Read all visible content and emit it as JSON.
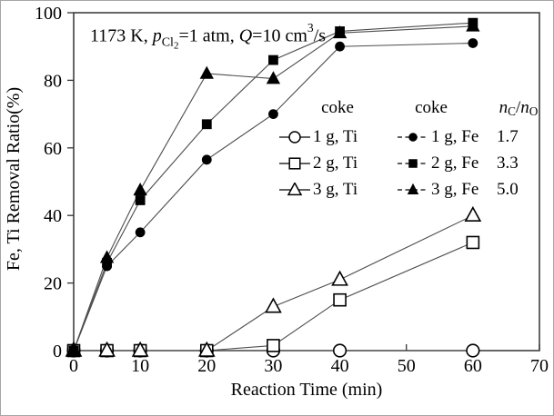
{
  "figure": {
    "background": "#ffffff",
    "border_color": "#a6a6a6"
  },
  "chart_data": {
    "type": "line",
    "annotation": {
      "text": "1173 K, pCl2=1 atm, Q=10 cm3/s",
      "parts": [
        {
          "t": "1173 K, ",
          "s": ""
        },
        {
          "t": "p",
          "s": "i"
        },
        {
          "t": "Cl",
          "s": "sub"
        },
        {
          "t": "2",
          "s": "sub2"
        },
        {
          "t": "=1 atm, ",
          "s": ""
        },
        {
          "t": "Q",
          "s": "i"
        },
        {
          "t": "=10 cm",
          "s": ""
        },
        {
          "t": "3",
          "s": "sup"
        },
        {
          "t": "/s",
          "s": ""
        }
      ]
    },
    "xlabel": "Reaction Time (min)",
    "ylabel": "Fe, Ti Removal Ratio(%)",
    "xlim": [
      0,
      70
    ],
    "ylim": [
      0,
      100
    ],
    "xticks": [
      0,
      10,
      20,
      30,
      40,
      50,
      60,
      70
    ],
    "yticks": [
      0,
      20,
      40,
      60,
      80,
      100
    ],
    "grid": "off",
    "x": [
      0,
      5,
      10,
      20,
      30,
      40,
      60
    ],
    "series": [
      {
        "name": "1 g, Ti",
        "element": "Ti",
        "coke_g": 1,
        "marker": "circle",
        "fill": "open",
        "legend_line": "solid",
        "values": [
          0,
          0,
          0,
          0,
          0,
          0,
          0
        ]
      },
      {
        "name": "2 g, Ti",
        "element": "Ti",
        "coke_g": 2,
        "marker": "square",
        "fill": "open",
        "legend_line": "solid",
        "values": [
          0,
          0,
          0,
          0,
          1.5,
          15,
          32
        ]
      },
      {
        "name": "3 g, Ti",
        "element": "Ti",
        "coke_g": 3,
        "marker": "triangle",
        "fill": "open",
        "legend_line": "solid",
        "values": [
          0,
          0,
          0,
          0,
          13,
          21,
          40
        ]
      },
      {
        "name": "1 g, Fe",
        "element": "Fe",
        "coke_g": 1,
        "marker": "circle",
        "fill": "filled",
        "legend_line": "dashed",
        "values": [
          0,
          25,
          35,
          56.5,
          70,
          90,
          91
        ]
      },
      {
        "name": "2 g, Fe",
        "element": "Fe",
        "coke_g": 2,
        "marker": "square",
        "fill": "filled",
        "legend_line": "dashed",
        "values": [
          0,
          26,
          44.5,
          67,
          86,
          94.5,
          97
        ]
      },
      {
        "name": "3 g, Fe",
        "element": "Fe",
        "coke_g": 3,
        "marker": "triangle",
        "fill": "filled",
        "legend_line": "dashed",
        "values": [
          0,
          27.5,
          47.5,
          82,
          80.5,
          94,
          96
        ]
      }
    ],
    "legend": {
      "position": "inside-upper-right",
      "col1_header": "coke",
      "col2_header": "coke",
      "col3_header_parts": [
        {
          "t": "n",
          "s": "i"
        },
        {
          "t": "C",
          "s": "sub"
        },
        {
          "t": "/",
          "s": ""
        },
        {
          "t": "n",
          "s": "i"
        },
        {
          "t": "O",
          "s": "sub"
        }
      ],
      "rows": [
        {
          "ti_index": 0,
          "fe_index": 3,
          "ratio": "1.7"
        },
        {
          "ti_index": 1,
          "fe_index": 4,
          "ratio": "3.3"
        },
        {
          "ti_index": 2,
          "fe_index": 5,
          "ratio": "5.0"
        }
      ]
    },
    "colors": {
      "line": "#4d4d4d",
      "marker_stroke": "#000000",
      "marker_open_fill": "#ffffff",
      "marker_filled_fill": "#000000",
      "axis": "#333333",
      "text": "#000000"
    }
  }
}
